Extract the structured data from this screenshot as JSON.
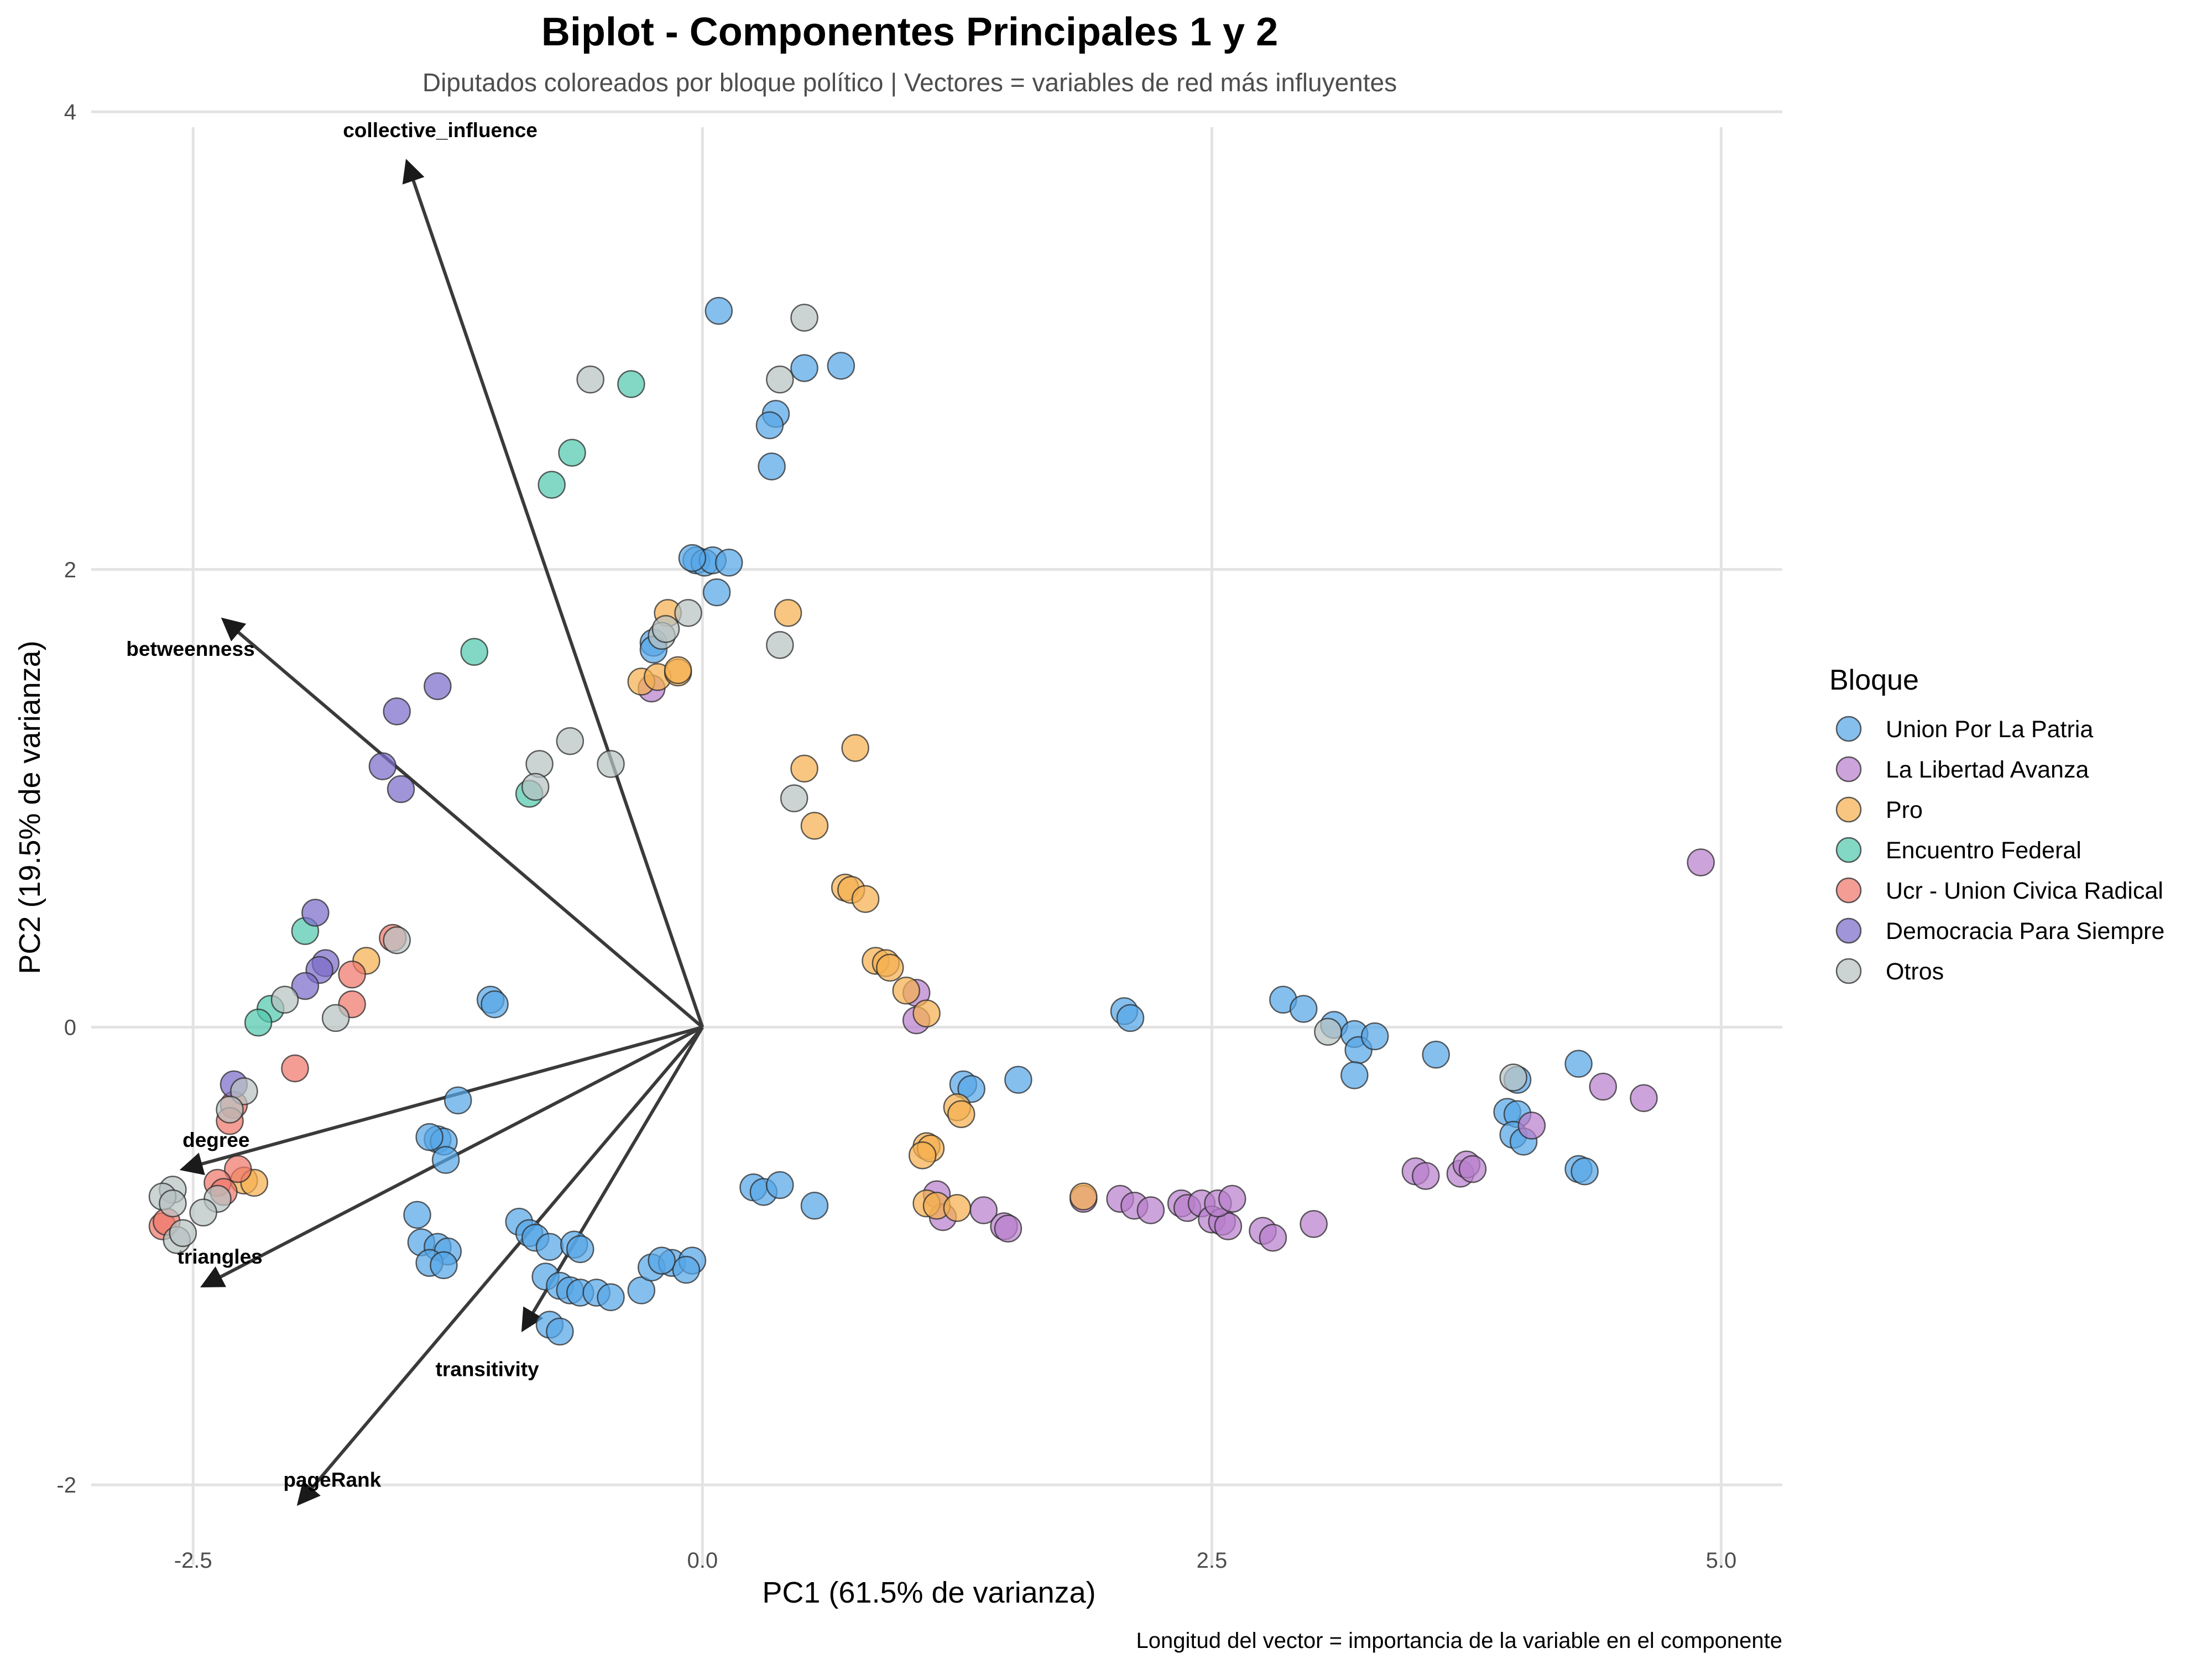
{
  "chart_data": {
    "type": "scatter",
    "title": "Biplot - Componentes Principales 1 y 2",
    "subtitle": "Diputados coloreados por bloque político | Vectores = variables de red más influyentes",
    "xlabel": "PC1 (61.5% de varianza)",
    "ylabel": "PC2 (19.5% de varianza)",
    "caption": "Longitud del vector = importancia de la variable en el componente",
    "xlim": [
      -3.0,
      5.3
    ],
    "ylim": [
      -2.35,
      4.15
    ],
    "xticks": [
      -2.5,
      0.0,
      2.5,
      5.0
    ],
    "xtick_labels": [
      "-2.5",
      "0.0",
      "2.5",
      "5.0"
    ],
    "yticks": [
      -2,
      0,
      2,
      4
    ],
    "ytick_labels": [
      "-2",
      "0",
      "2",
      "4"
    ],
    "grid": true,
    "legend": {
      "title": "Bloque",
      "position": "right"
    },
    "vectors": [
      {
        "label": "collective_influence",
        "x": -1.45,
        "y": 3.78
      },
      {
        "label": "betweenness",
        "x": -2.35,
        "y": 1.78
      },
      {
        "label": "degree",
        "x": -2.55,
        "y": -0.62
      },
      {
        "label": "triangles",
        "x": -2.45,
        "y": -1.13
      },
      {
        "label": "transitivity",
        "x": -0.88,
        "y": -1.32
      },
      {
        "label": "pageRank",
        "x": -1.98,
        "y": -2.08
      }
    ],
    "series": [
      {
        "name": "Union Por La Patria",
        "color": "#56a6e8",
        "points": [
          [
            0.08,
            3.13
          ],
          [
            0.5,
            2.88
          ],
          [
            0.68,
            2.89
          ],
          [
            0.36,
            2.68
          ],
          [
            0.33,
            2.63
          ],
          [
            0.34,
            2.45
          ],
          [
            -0.03,
            2.04
          ],
          [
            0.01,
            2.03
          ],
          [
            0.05,
            2.04
          ],
          [
            0.13,
            2.03
          ],
          [
            0.07,
            1.9
          ],
          [
            -0.05,
            2.05
          ],
          [
            -0.24,
            1.68
          ],
          [
            -0.24,
            1.65
          ],
          [
            -1.04,
            0.12
          ],
          [
            -1.02,
            0.1
          ],
          [
            -1.3,
            -0.49
          ],
          [
            -1.27,
            -0.5
          ],
          [
            -1.26,
            -0.58
          ],
          [
            -1.34,
            -0.48
          ],
          [
            -1.2,
            -0.32
          ],
          [
            -1.4,
            -0.82
          ],
          [
            -1.38,
            -0.94
          ],
          [
            -1.3,
            -0.96
          ],
          [
            -1.25,
            -0.98
          ],
          [
            -1.34,
            -1.03
          ],
          [
            -1.27,
            -1.04
          ],
          [
            -0.9,
            -0.85
          ],
          [
            -0.85,
            -0.9
          ],
          [
            -0.82,
            -0.92
          ],
          [
            -0.75,
            -0.96
          ],
          [
            -0.63,
            -0.95
          ],
          [
            -0.6,
            -0.97
          ],
          [
            -0.77,
            -1.09
          ],
          [
            -0.7,
            -1.13
          ],
          [
            -0.65,
            -1.15
          ],
          [
            -0.6,
            -1.16
          ],
          [
            -0.52,
            -1.16
          ],
          [
            -0.75,
            -1.3
          ],
          [
            -0.7,
            -1.33
          ],
          [
            -0.45,
            -1.18
          ],
          [
            -0.3,
            -1.15
          ],
          [
            -0.25,
            -1.05
          ],
          [
            -0.15,
            -1.03
          ],
          [
            -0.05,
            -1.02
          ],
          [
            -0.08,
            -1.06
          ],
          [
            -0.2,
            -1.02
          ],
          [
            0.25,
            -0.7
          ],
          [
            0.3,
            -0.72
          ],
          [
            0.38,
            -0.69
          ],
          [
            0.55,
            -0.78
          ],
          [
            1.28,
            -0.25
          ],
          [
            1.32,
            -0.27
          ],
          [
            1.55,
            -0.23
          ],
          [
            2.07,
            0.07
          ],
          [
            2.1,
            0.04
          ],
          [
            2.85,
            0.12
          ],
          [
            2.95,
            0.08
          ],
          [
            3.1,
            0.01
          ],
          [
            3.2,
            -0.03
          ],
          [
            3.22,
            -0.1
          ],
          [
            3.3,
            -0.04
          ],
          [
            3.2,
            -0.21
          ],
          [
            3.6,
            -0.12
          ],
          [
            3.95,
            -0.37
          ],
          [
            4.0,
            -0.38
          ],
          [
            3.98,
            -0.47
          ],
          [
            4.03,
            -0.5
          ],
          [
            4.0,
            -0.23
          ],
          [
            4.3,
            -0.16
          ],
          [
            4.3,
            -0.62
          ],
          [
            4.33,
            -0.63
          ]
        ]
      },
      {
        "name": "La Libertad Avanza",
        "color": "#b87fcc",
        "points": [
          [
            -0.25,
            1.48
          ],
          [
            1.05,
            0.15
          ],
          [
            1.05,
            0.03
          ],
          [
            1.15,
            -0.73
          ],
          [
            1.18,
            -0.83
          ],
          [
            1.38,
            -0.8
          ],
          [
            1.48,
            -0.87
          ],
          [
            1.5,
            -0.88
          ],
          [
            1.87,
            -0.75
          ],
          [
            2.05,
            -0.75
          ],
          [
            2.12,
            -0.78
          ],
          [
            2.2,
            -0.8
          ],
          [
            2.35,
            -0.77
          ],
          [
            2.38,
            -0.79
          ],
          [
            2.45,
            -0.77
          ],
          [
            2.5,
            -0.84
          ],
          [
            2.55,
            -0.85
          ],
          [
            2.58,
            -0.87
          ],
          [
            2.53,
            -0.77
          ],
          [
            2.6,
            -0.75
          ],
          [
            2.75,
            -0.89
          ],
          [
            2.8,
            -0.92
          ],
          [
            3.0,
            -0.86
          ],
          [
            3.5,
            -0.63
          ],
          [
            3.55,
            -0.65
          ],
          [
            3.72,
            -0.64
          ],
          [
            3.75,
            -0.6
          ],
          [
            3.78,
            -0.62
          ],
          [
            4.07,
            -0.43
          ],
          [
            4.42,
            -0.26
          ],
          [
            4.62,
            -0.31
          ],
          [
            4.9,
            0.72
          ]
        ]
      },
      {
        "name": "Pro",
        "color": "#f5b04f",
        "points": [
          [
            -0.17,
            1.81
          ],
          [
            -0.3,
            1.51
          ],
          [
            -0.22,
            1.53
          ],
          [
            -0.12,
            1.55
          ],
          [
            -0.12,
            1.56
          ],
          [
            0.42,
            1.81
          ],
          [
            0.5,
            1.13
          ],
          [
            0.75,
            1.22
          ],
          [
            0.55,
            0.88
          ],
          [
            0.7,
            0.61
          ],
          [
            0.73,
            0.6
          ],
          [
            0.8,
            0.56
          ],
          [
            0.85,
            0.29
          ],
          [
            0.9,
            0.28
          ],
          [
            0.92,
            0.26
          ],
          [
            1.0,
            0.16
          ],
          [
            1.1,
            0.06
          ],
          [
            -1.65,
            0.29
          ],
          [
            1.1,
            -0.52
          ],
          [
            1.12,
            -0.53
          ],
          [
            1.08,
            -0.56
          ],
          [
            1.25,
            -0.35
          ],
          [
            1.27,
            -0.38
          ],
          [
            1.1,
            -0.77
          ],
          [
            1.15,
            -0.78
          ],
          [
            1.25,
            -0.79
          ],
          [
            1.87,
            -0.74
          ],
          [
            -2.25,
            -0.67
          ],
          [
            -2.2,
            -0.68
          ]
        ]
      },
      {
        "name": "Encuentro Federal",
        "color": "#52c9ad",
        "points": [
          [
            -0.35,
            2.81
          ],
          [
            -0.64,
            2.51
          ],
          [
            -0.74,
            2.37
          ],
          [
            -1.12,
            1.64
          ],
          [
            -0.85,
            1.02
          ],
          [
            -1.95,
            0.42
          ],
          [
            -2.12,
            0.08
          ],
          [
            -2.18,
            0.02
          ]
        ]
      },
      {
        "name": "Ucr - Union Civica Radical",
        "color": "#ee776b",
        "points": [
          [
            -1.52,
            0.39
          ],
          [
            -1.72,
            0.23
          ],
          [
            -1.72,
            0.1
          ],
          [
            -2.0,
            -0.18
          ],
          [
            -2.3,
            -0.34
          ],
          [
            -2.32,
            -0.41
          ],
          [
            -2.28,
            -0.62
          ],
          [
            -2.38,
            -0.68
          ],
          [
            -2.35,
            -0.72
          ],
          [
            -2.65,
            -0.87
          ],
          [
            -2.63,
            -0.85
          ]
        ]
      },
      {
        "name": "Democracia Para Siempre",
        "color": "#7b6cc9",
        "points": [
          [
            -1.3,
            1.49
          ],
          [
            -1.5,
            1.38
          ],
          [
            -1.57,
            1.14
          ],
          [
            -1.48,
            1.04
          ],
          [
            -1.9,
            0.5
          ],
          [
            -1.85,
            0.28
          ],
          [
            -1.88,
            0.25
          ],
          [
            -1.95,
            0.18
          ],
          [
            -2.3,
            -0.25
          ]
        ]
      },
      {
        "name": "Otros",
        "color": "#b8c2c2",
        "points": [
          [
            0.5,
            3.1
          ],
          [
            0.38,
            2.83
          ],
          [
            -0.55,
            2.83
          ],
          [
            -0.2,
            1.71
          ],
          [
            -0.07,
            1.81
          ],
          [
            -0.18,
            1.74
          ],
          [
            0.38,
            1.67
          ],
          [
            -0.65,
            1.25
          ],
          [
            -0.8,
            1.15
          ],
          [
            -0.82,
            1.05
          ],
          [
            -0.45,
            1.15
          ],
          [
            0.45,
            1.0
          ],
          [
            -1.5,
            0.38
          ],
          [
            -1.8,
            0.04
          ],
          [
            -2.05,
            0.12
          ],
          [
            -2.25,
            -0.28
          ],
          [
            -2.32,
            -0.36
          ],
          [
            -2.6,
            -0.71
          ],
          [
            -2.65,
            -0.74
          ],
          [
            -2.6,
            -0.77
          ],
          [
            -2.38,
            -0.75
          ],
          [
            -2.45,
            -0.81
          ],
          [
            -2.58,
            -0.93
          ],
          [
            -2.55,
            -0.9
          ],
          [
            3.07,
            -0.02
          ],
          [
            3.98,
            -0.22
          ]
        ]
      }
    ]
  }
}
